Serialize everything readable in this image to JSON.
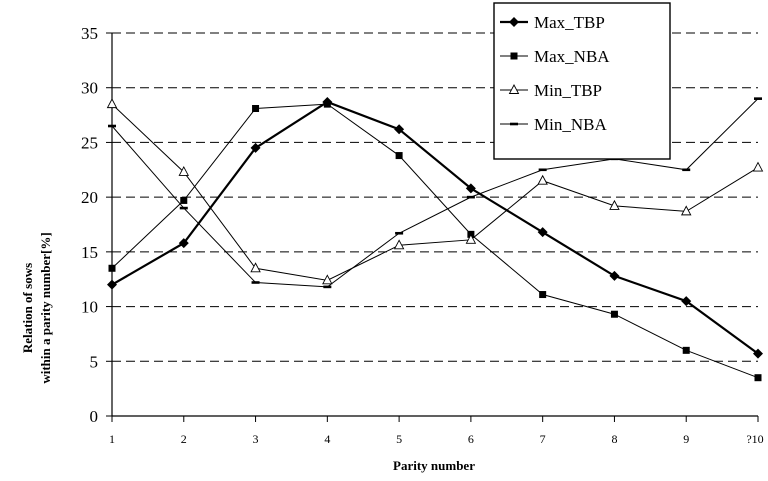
{
  "chart_data": {
    "type": "line",
    "title": "",
    "xlabel": "Parity number",
    "ylabel_lines": [
      "Relation of sows",
      "within a parity number[%]"
    ],
    "categories": [
      "1",
      "2",
      "3",
      "4",
      "5",
      "6",
      "7",
      "8",
      "9",
      "?10"
    ],
    "ylim": [
      0,
      35
    ],
    "yticks": [
      0,
      5,
      10,
      15,
      20,
      25,
      30,
      35
    ],
    "grid": "horizontal dashed",
    "legend_position": "top-right",
    "series": [
      {
        "name": "Max_TBP",
        "marker": "diamond",
        "line": "thick",
        "color": "#000000",
        "values": [
          12.0,
          15.8,
          24.5,
          28.7,
          26.2,
          20.8,
          16.8,
          12.8,
          10.5,
          5.7
        ]
      },
      {
        "name": "Max_NBA",
        "marker": "square",
        "line": "thin",
        "color": "#000000",
        "values": [
          13.5,
          19.7,
          28.1,
          28.5,
          23.8,
          16.6,
          11.1,
          9.3,
          6.0,
          3.5
        ]
      },
      {
        "name": "Min_TBP",
        "marker": "open-triangle",
        "line": "thin",
        "color": "#000000",
        "values": [
          28.5,
          22.3,
          13.5,
          12.4,
          15.6,
          16.1,
          21.5,
          19.2,
          18.7,
          22.7
        ]
      },
      {
        "name": "Min_NBA",
        "marker": "dash",
        "line": "thin",
        "color": "#000000",
        "values": [
          26.5,
          19.0,
          12.2,
          11.8,
          16.7,
          20.0,
          22.5,
          23.5,
          22.5,
          29.0
        ]
      }
    ]
  }
}
